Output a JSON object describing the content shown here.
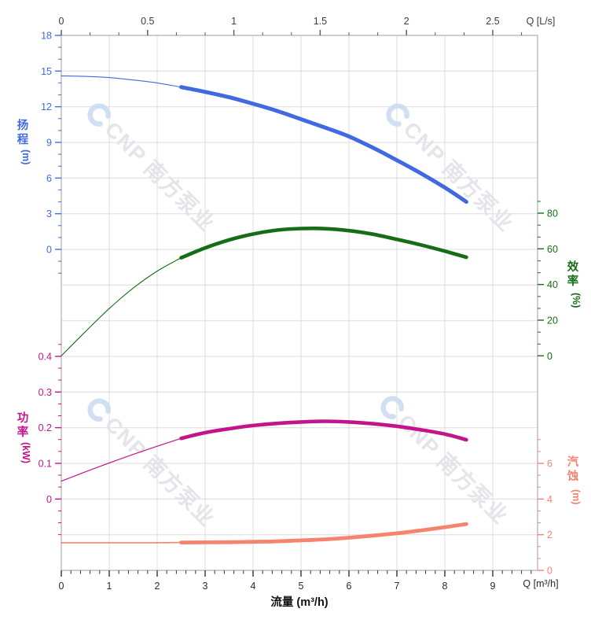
{
  "watermark": {
    "text": "CNP 南方泵业",
    "text_color": "#e1e1e8",
    "logo_color": "#ccdcf1"
  },
  "axes": {
    "top": {
      "label": "Q [L/s]",
      "label_color": "#3c3c3c",
      "tick_labels": [
        "0",
        "0.5",
        "1",
        "1.5",
        "2",
        "2.5"
      ],
      "tick_values": [
        0,
        0.5,
        1,
        1.5,
        2,
        2.5
      ],
      "color": "#555555"
    },
    "bottom": {
      "label": "Q [m³/h]",
      "label_color": "#2a2a2a",
      "axis_title": "流量 (m³/h)",
      "title_color": "#111111",
      "tick_labels": [
        "0",
        "1",
        "2",
        "3",
        "4",
        "5",
        "6",
        "7",
        "8",
        "9"
      ],
      "tick_values": [
        0,
        1,
        2,
        3,
        4,
        5,
        6,
        7,
        8,
        9
      ],
      "color": "#333333"
    },
    "head": {
      "title": "扬程",
      "unit": "(m)",
      "color": "#4169e1",
      "tick_labels": [
        "18",
        "15",
        "12",
        "9",
        "6",
        "3",
        "0"
      ],
      "tick_values": [
        18,
        15,
        12,
        9,
        6,
        3,
        0
      ]
    },
    "power": {
      "title": "功率",
      "unit": "(kW)",
      "color": "#c3158b",
      "tick_labels": [
        "0.4",
        "0.3",
        "0.2",
        "0.1",
        "0"
      ],
      "tick_values": [
        0.4,
        0.3,
        0.2,
        0.1,
        0
      ]
    },
    "efficiency": {
      "title": "效率",
      "unit": "(%)",
      "color": "#156e15",
      "tick_labels": [
        "80",
        "60",
        "40",
        "20",
        "0"
      ],
      "tick_values": [
        80,
        60,
        40,
        20,
        0
      ]
    },
    "npsh": {
      "title": "汽蚀",
      "unit": "(m)",
      "color": "#f5836e",
      "tick_labels": [
        "6",
        "4",
        "2",
        "0"
      ],
      "tick_values": [
        6,
        4,
        2,
        0
      ]
    }
  },
  "chart_data": {
    "type": "line",
    "title": "",
    "x_axis_bottom": {
      "label": "流量 (m³/h)",
      "unit": "m³/h",
      "range": [
        0,
        9
      ],
      "minor_step": 0.2
    },
    "x_axis_top": {
      "label": "Q [L/s]",
      "unit": "L/s",
      "range": [
        0,
        2.5
      ],
      "conversion": "1 L/s = 3.6 m³/h"
    },
    "grid": true,
    "legend_position": "none",
    "bold_operating_range": [
      2.5,
      8.45
    ],
    "x": [
      0,
      0.5,
      1,
      1.5,
      2,
      2.5,
      3,
      3.5,
      4,
      4.5,
      5,
      5.5,
      6,
      6.5,
      7,
      7.5,
      8,
      8.45
    ],
    "series": [
      {
        "name": "head",
        "label": "扬程",
        "unit": "m",
        "axis": "head",
        "axis_range": [
          0,
          18
        ],
        "color": "#4169e1",
        "values": [
          14.6,
          14.55,
          14.45,
          14.25,
          14.0,
          13.65,
          13.25,
          12.8,
          12.25,
          11.65,
          10.95,
          10.25,
          9.5,
          8.55,
          7.5,
          6.4,
          5.2,
          4.0
        ]
      },
      {
        "name": "efficiency",
        "label": "效率",
        "unit": "%",
        "axis": "efficiency",
        "axis_range": [
          0,
          80
        ],
        "color": "#156e15",
        "values": [
          0,
          13.5,
          26.5,
          38,
          47.5,
          55,
          60.5,
          65,
          68.3,
          70.5,
          71.4,
          71.3,
          70.2,
          68.2,
          65.3,
          62.2,
          58.7,
          55.3
        ]
      },
      {
        "name": "power",
        "label": "功率",
        "unit": "kW",
        "axis": "power",
        "axis_range": [
          0,
          0.4
        ],
        "color": "#c3158b",
        "values": [
          0.05,
          0.076,
          0.101,
          0.125,
          0.148,
          0.17,
          0.186,
          0.197,
          0.206,
          0.212,
          0.216,
          0.218,
          0.216,
          0.211,
          0.204,
          0.194,
          0.182,
          0.166
        ]
      },
      {
        "name": "npsh",
        "label": "汽蚀",
        "unit": "m",
        "axis": "npsh",
        "axis_range": [
          0,
          6
        ],
        "color": "#f5836e",
        "values": [
          1.55,
          1.55,
          1.55,
          1.55,
          1.55,
          1.56,
          1.57,
          1.58,
          1.6,
          1.63,
          1.68,
          1.74,
          1.83,
          1.95,
          2.08,
          2.24,
          2.42,
          2.6
        ]
      }
    ]
  }
}
